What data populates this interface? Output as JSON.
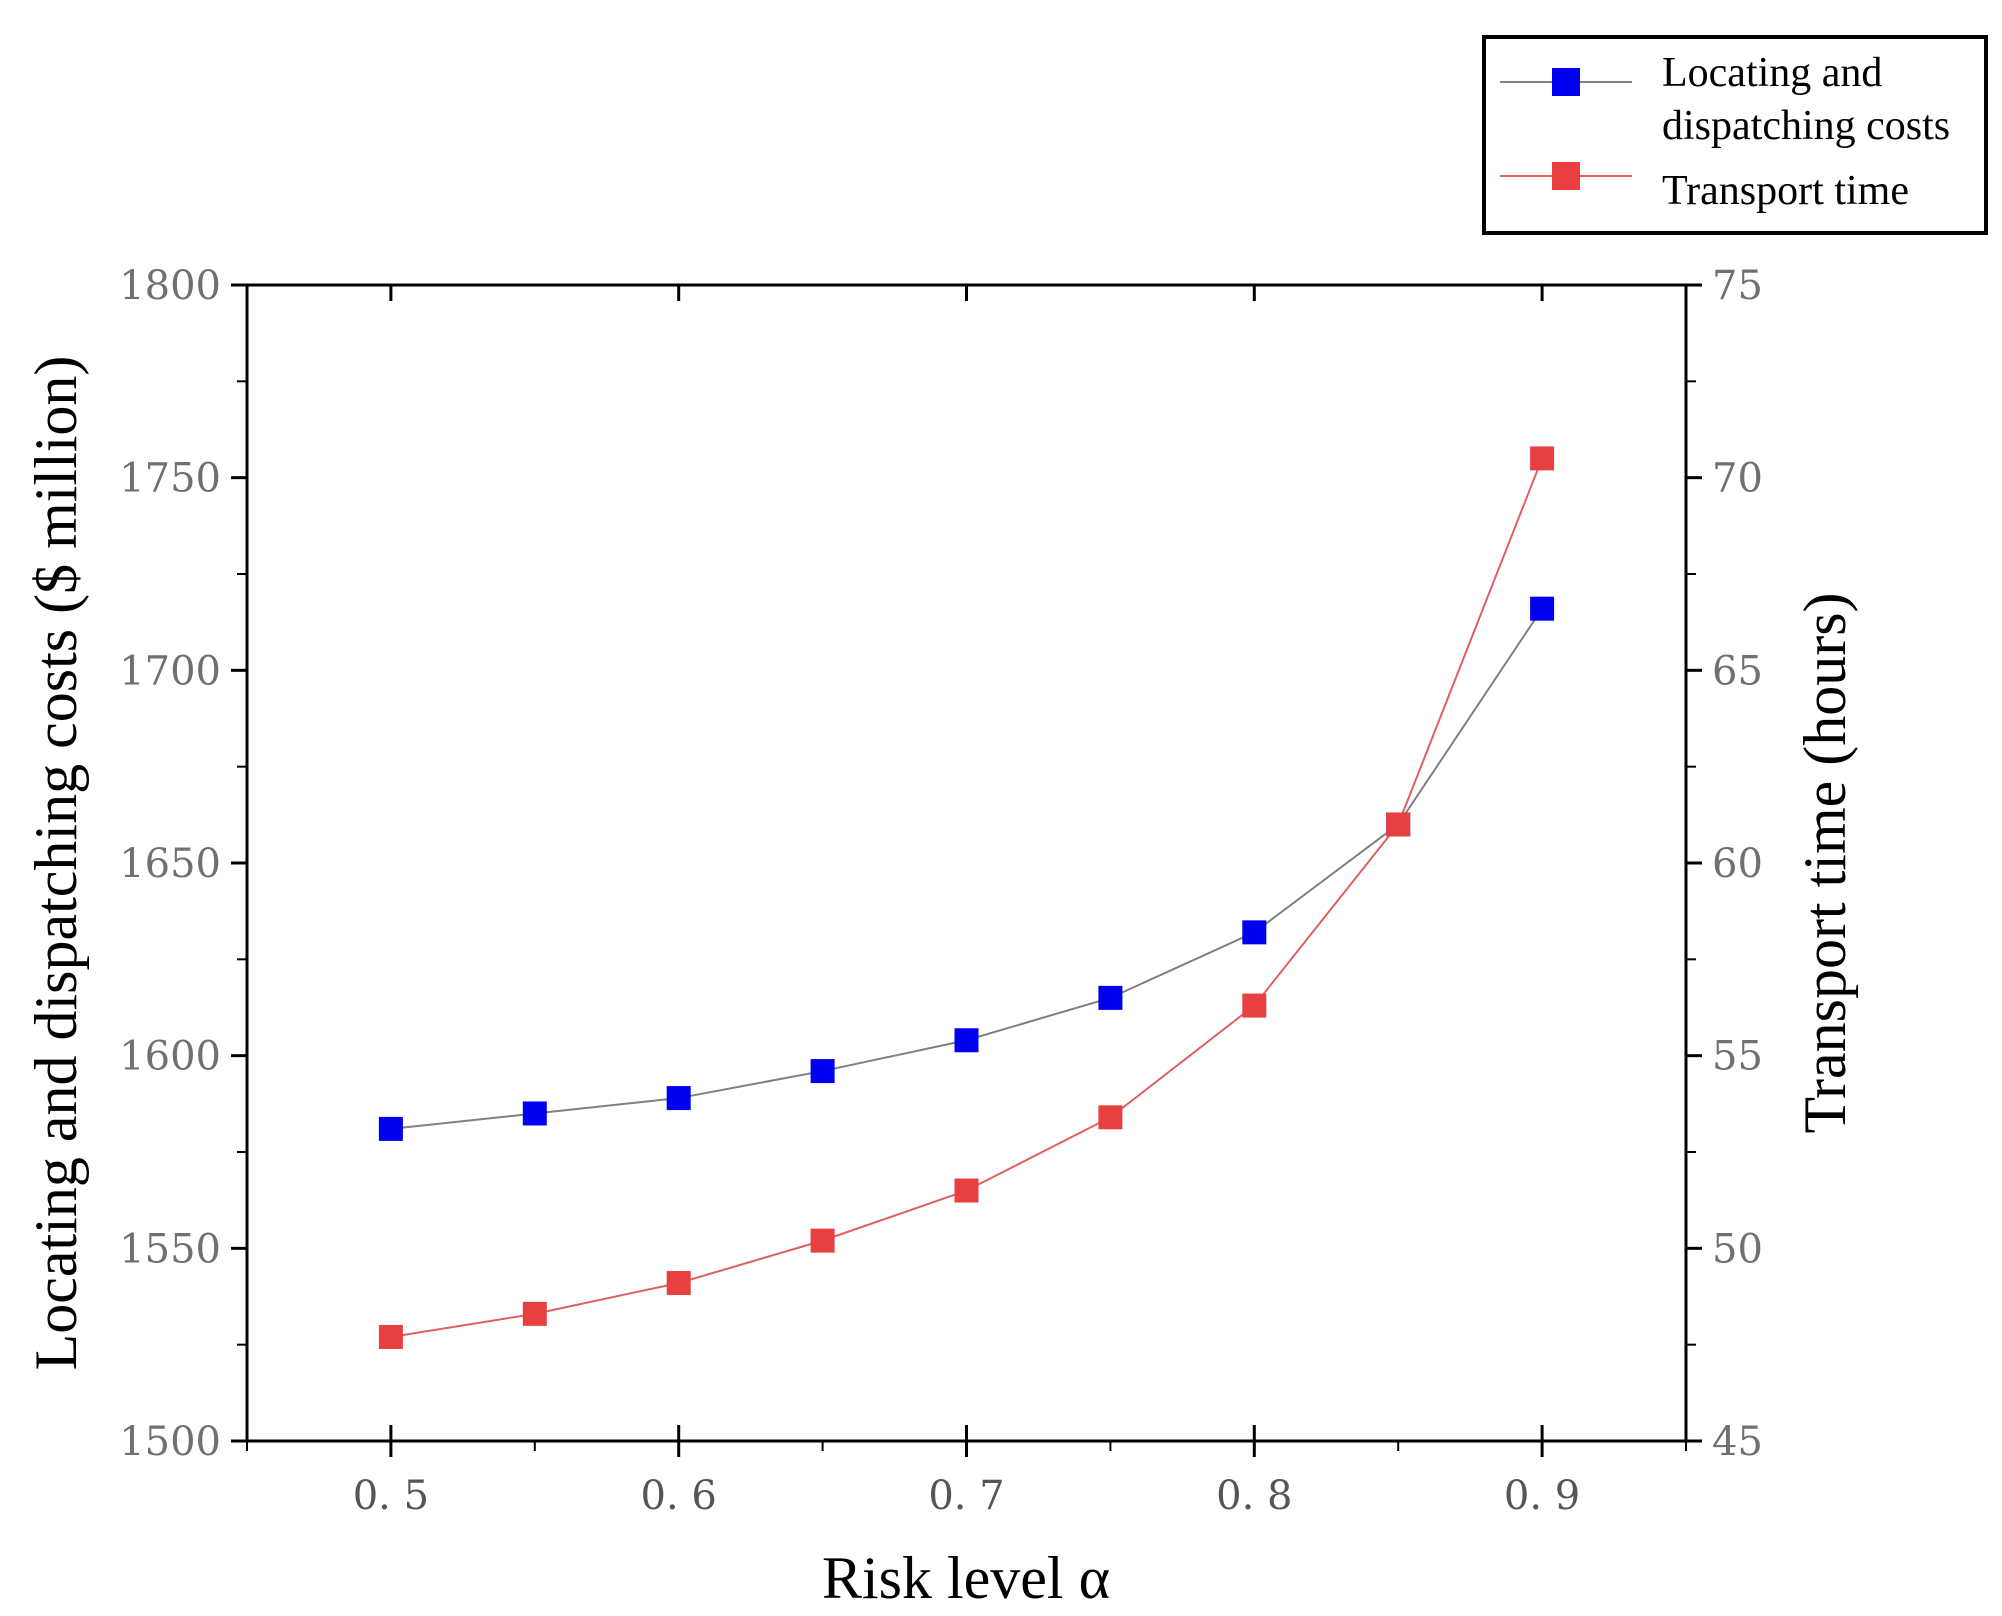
{
  "chart_data": {
    "type": "line",
    "x": [
      0.5,
      0.55,
      0.6,
      0.65,
      0.7,
      0.75,
      0.8,
      0.85,
      0.9
    ],
    "xlim": [
      0.45,
      0.95
    ],
    "x_ticks": [
      0.5,
      0.6,
      0.7,
      0.8,
      0.9
    ],
    "x_tick_labels": [
      "0. 5",
      "0. 6",
      "0. 7",
      "0. 8",
      "0. 9"
    ],
    "xlabel": "Risk level α",
    "y_left": {
      "label": "Locating and dispatching costs ($ million)",
      "lim": [
        1500,
        1800
      ],
      "ticks": [
        1500,
        1550,
        1600,
        1650,
        1700,
        1750,
        1800
      ],
      "tick_labels": [
        "1500",
        "1550",
        "1600",
        "1650",
        "1700",
        "1750",
        "1800"
      ]
    },
    "y_right": {
      "label": "Transport time (hours)",
      "lim": [
        45,
        75
      ],
      "ticks": [
        45,
        50,
        55,
        60,
        65,
        70,
        75
      ],
      "tick_labels": [
        "45",
        "50",
        "55",
        "60",
        "65",
        "70",
        "75"
      ]
    },
    "series": [
      {
        "name": "Locating and dispatching costs",
        "legend_lines": [
          "Locating and",
          "dispatching costs"
        ],
        "axis": "left",
        "marker_color": "#0000ee",
        "line_color": "#808080",
        "values": [
          1581,
          1585,
          1589,
          1596,
          1604,
          1615,
          1632,
          1660,
          1716
        ]
      },
      {
        "name": "Transport time",
        "legend_lines": [
          "Transport time"
        ],
        "axis": "right",
        "marker_color": "#e84040",
        "line_color": "#e06060",
        "values": [
          47.7,
          48.3,
          49.1,
          50.2,
          51.5,
          53.4,
          56.3,
          61.0,
          70.5
        ]
      }
    ],
    "legend_position": "top-right, above plot"
  }
}
